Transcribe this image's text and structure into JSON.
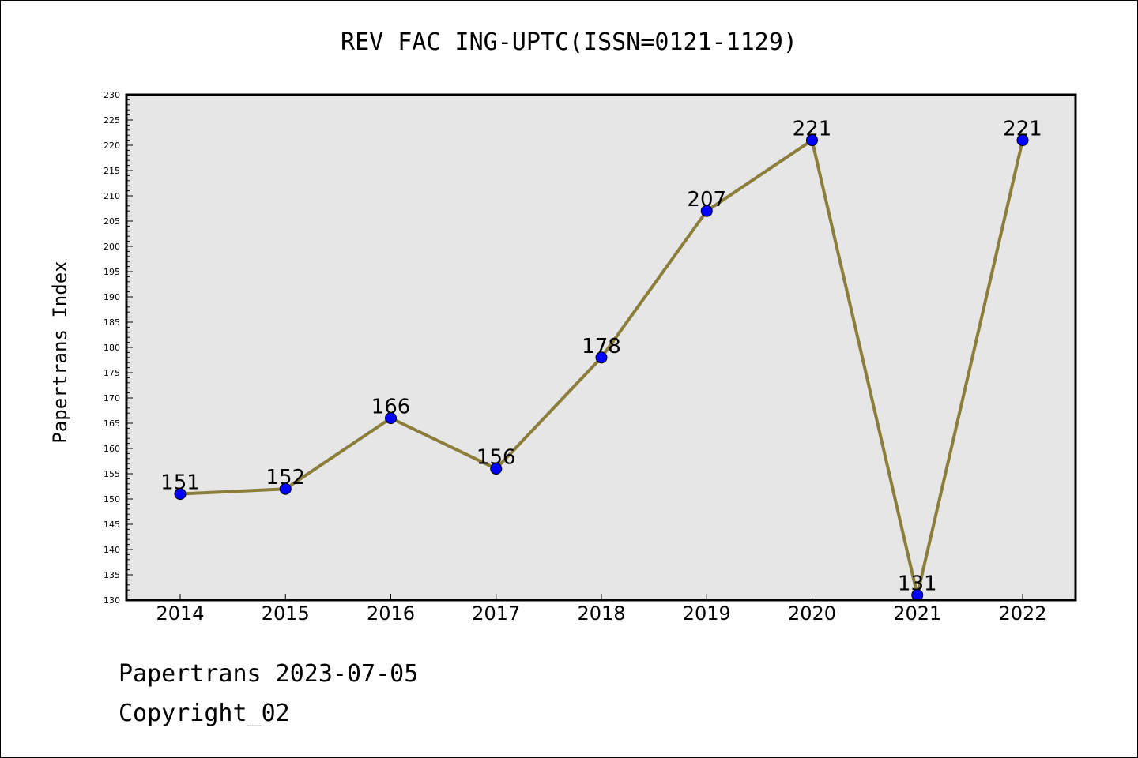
{
  "chart_data": {
    "type": "line",
    "title": "REV FAC ING-UPTC(ISSN=0121-1129)",
    "xlabel": "",
    "ylabel": "Papertrans Index",
    "categories": [
      "2014",
      "2015",
      "2016",
      "2017",
      "2018",
      "2019",
      "2020",
      "2021",
      "2022"
    ],
    "values": [
      151,
      152,
      166,
      156,
      178,
      207,
      221,
      131,
      221
    ],
    "data_labels": [
      "151",
      "152",
      "166",
      "156",
      "178",
      "207",
      "221",
      "131",
      "221"
    ],
    "ylim": [
      130,
      230
    ],
    "y_major_step": 5,
    "y_minor_step": 1,
    "grid": false,
    "colors": {
      "line": "#8B7D3A",
      "marker": "#0000FF",
      "plot_background": "#E6E6E6"
    }
  },
  "footer": {
    "date_line": "Papertrans 2023-07-05",
    "copyright_line": "Copyright_02"
  }
}
